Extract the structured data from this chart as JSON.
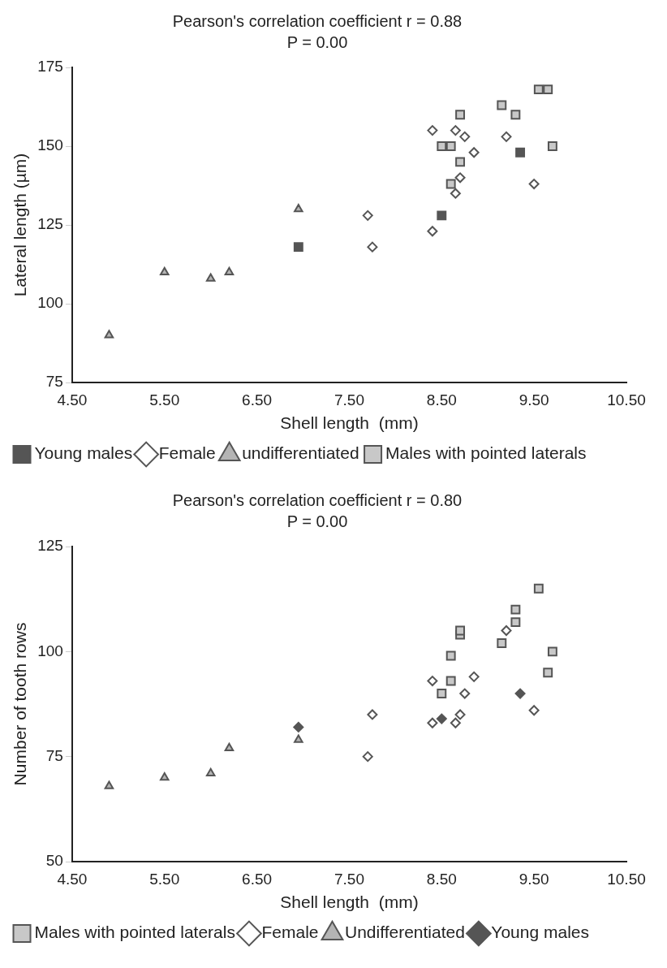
{
  "chart_data": [
    {
      "type": "scatter",
      "title": "Pearson's correlation coefficient r = 0.88",
      "subtitle": "P = 0.00",
      "xlabel": "Shell length  (mm)",
      "ylabel": "Lateral length (µm)",
      "xlim": [
        4.5,
        10.5
      ],
      "xticks": [
        {
          "value": 4.5,
          "label": "4.50"
        },
        {
          "value": 5.5,
          "label": "5.50"
        },
        {
          "value": 6.5,
          "label": "6.50"
        },
        {
          "value": 7.5,
          "label": "7.50"
        },
        {
          "value": 8.5,
          "label": "8.50"
        },
        {
          "value": 9.5,
          "label": "9.50"
        },
        {
          "value": 10.5,
          "label": "10.50"
        }
      ],
      "ylim": [
        75,
        175
      ],
      "yticks": [
        75,
        100,
        125,
        150,
        175
      ],
      "grid": false,
      "legend": "bottom",
      "series": [
        {
          "name": "Young males",
          "color": "#555555",
          "marker": "square",
          "x": [
            6.95,
            8.5,
            9.35
          ],
          "values": [
            118,
            128,
            148
          ]
        },
        {
          "name": "Female",
          "color": "#ffffff",
          "marker": "diamond",
          "x": [
            7.7,
            7.75,
            8.4,
            8.4,
            8.65,
            8.75,
            8.65,
            8.7,
            8.85,
            9.2,
            9.5
          ],
          "values": [
            128,
            118,
            155,
            123,
            155,
            153,
            135,
            140,
            148,
            153,
            138
          ]
        },
        {
          "name": "undifferentiated",
          "color": "#b4b4b4",
          "marker": "triangle",
          "x": [
            4.9,
            5.5,
            6.0,
            6.2,
            6.95
          ],
          "values": [
            90,
            110,
            108,
            110,
            130
          ]
        },
        {
          "name": "Males with pointed laterals",
          "color": "#c8c8c8",
          "marker": "square",
          "x": [
            8.5,
            8.6,
            8.7,
            8.7,
            8.6,
            9.15,
            9.3,
            9.55,
            9.65,
            9.7
          ],
          "values": [
            150,
            150,
            160,
            145,
            138,
            163,
            160,
            168,
            168,
            150
          ]
        }
      ]
    },
    {
      "type": "scatter",
      "title": "Pearson's correlation coefficient r = 0.80",
      "subtitle": "P = 0.00",
      "xlabel": "Shell length  (mm)",
      "ylabel": "Number of tooth rows",
      "xlim": [
        4.5,
        10.5
      ],
      "xticks": [
        {
          "value": 4.5,
          "label": "4.50"
        },
        {
          "value": 5.5,
          "label": "5.50"
        },
        {
          "value": 6.5,
          "label": "6.50"
        },
        {
          "value": 7.5,
          "label": "7.50"
        },
        {
          "value": 8.5,
          "label": "8.50"
        },
        {
          "value": 9.5,
          "label": "9.50"
        },
        {
          "value": 10.5,
          "label": "10.50"
        }
      ],
      "ylim": [
        50,
        125
      ],
      "yticks": [
        50,
        75,
        100,
        125
      ],
      "grid": false,
      "legend": "bottom",
      "series": [
        {
          "name": "Males with pointed laterals",
          "color": "#c8c8c8",
          "marker": "square",
          "x": [
            8.5,
            8.6,
            8.6,
            8.7,
            8.7,
            9.15,
            9.3,
            9.3,
            9.55,
            9.65,
            9.7
          ],
          "values": [
            90,
            93,
            99,
            104,
            105,
            102,
            107,
            110,
            115,
            95,
            100
          ]
        },
        {
          "name": "Female",
          "color": "#ffffff",
          "marker": "diamond",
          "x": [
            8.4,
            8.4,
            8.65,
            8.7,
            8.75,
            8.85,
            9.2,
            9.5,
            7.7,
            7.75
          ],
          "values": [
            93,
            83,
            83,
            85,
            90,
            94,
            105,
            86,
            75,
            85
          ]
        },
        {
          "name": "Undifferentiated",
          "color": "#b4b4b4",
          "marker": "triangle",
          "x": [
            4.9,
            5.5,
            6.0,
            6.2,
            6.95
          ],
          "values": [
            68,
            70,
            71,
            77,
            79
          ]
        },
        {
          "name": "Young males",
          "color": "#555555",
          "marker": "diamond",
          "x": [
            6.95,
            8.5,
            9.35
          ],
          "values": [
            82,
            84,
            90
          ]
        }
      ]
    }
  ]
}
